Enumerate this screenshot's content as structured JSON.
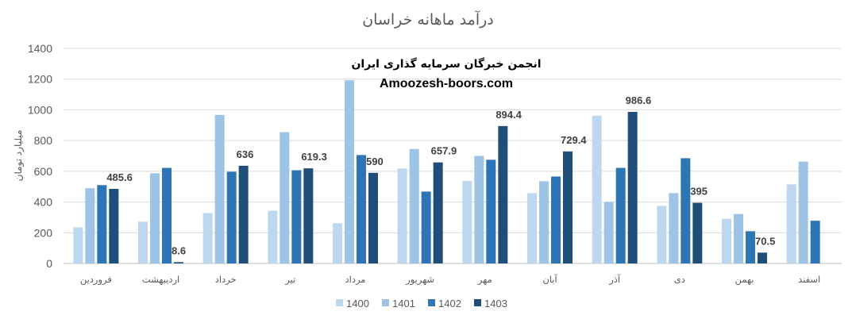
{
  "chart_data": {
    "type": "bar",
    "title": "درآمد ماهانه خراسان",
    "ylabel": "میلیارد تومان",
    "xlabel": "",
    "ylim": [
      0,
      1400
    ],
    "yticks": [
      0,
      200,
      400,
      600,
      800,
      1000,
      1200,
      1400
    ],
    "grid": true,
    "legend_position": "bottom",
    "categories": [
      "فروردین",
      "اردیبهشت",
      "خرداد",
      "تیر",
      "مرداد",
      "شهریور",
      "مهر",
      "آبان",
      "آذر",
      "دی",
      "بهمن",
      "اسفند"
    ],
    "series": [
      {
        "name": "1400",
        "color": "#bdd7ee",
        "values": [
          235,
          272,
          328,
          343,
          262,
          618,
          537,
          458,
          962,
          375,
          291,
          515
        ]
      },
      {
        "name": "1401",
        "color": "#9dc3e6",
        "values": [
          490,
          587,
          967,
          855,
          1193,
          745,
          700,
          535,
          400,
          458,
          322,
          663
        ]
      },
      {
        "name": "1402",
        "color": "#2e75b6",
        "values": [
          510,
          622,
          597,
          607,
          706,
          468,
          675,
          566,
          622,
          685,
          210,
          278
        ]
      },
      {
        "name": "1403",
        "color": "#1f4e79",
        "values": [
          485.6,
          8.6,
          636,
          619.3,
          590,
          657.9,
          894.4,
          729.4,
          986.6,
          395,
          70.5,
          null
        ]
      }
    ],
    "data_labels": {
      "series": "1403",
      "values": [
        "485.6",
        "8.6",
        "636",
        "619.3",
        "590",
        "657.9",
        "894.4",
        "729.4",
        "986.6",
        "395",
        "70.5",
        null
      ]
    }
  },
  "watermark": {
    "line1": "انجمن خبرگان سرمایه گذاری ایران",
    "line2": "Amoozesh-boors.com"
  }
}
